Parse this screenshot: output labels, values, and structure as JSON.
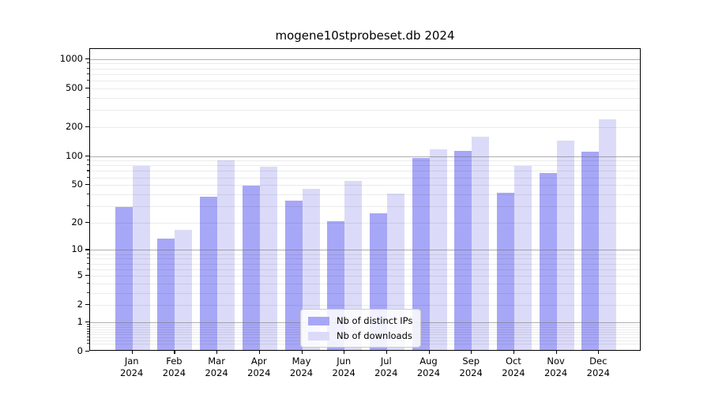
{
  "title": "mogene10stprobeset.db 2024",
  "legend": {
    "items": [
      {
        "label": "Nb of distinct IPs",
        "color": "#a7a7f7"
      },
      {
        "label": "Nb of downloads",
        "color": "#dbdbf9"
      }
    ]
  },
  "chart_data": {
    "type": "bar",
    "title": "mogene10stprobeset.db 2024",
    "categories": [
      "Jan",
      "Feb",
      "Mar",
      "Apr",
      "May",
      "Jun",
      "Jul",
      "Aug",
      "Sep",
      "Oct",
      "Nov",
      "Dec"
    ],
    "year_label": "2024",
    "series": [
      {
        "name": "Nb of distinct IPs",
        "color": "#a7a7f7",
        "values": [
          28,
          13,
          36,
          47,
          33,
          20,
          24,
          92,
          109,
          40,
          64,
          107
        ]
      },
      {
        "name": "Nb of downloads",
        "color": "#dbdbf9",
        "values": [
          76,
          16,
          87,
          75,
          44,
          53,
          39,
          113,
          152,
          76,
          139,
          230
        ]
      }
    ],
    "xlabel": "",
    "ylabel": "",
    "yscale": "log10(1+x)",
    "ylim": [
      0,
      1000
    ],
    "yticks": [
      0,
      1,
      2,
      5,
      10,
      20,
      50,
      100,
      200,
      500,
      1000
    ],
    "major_gridlines": [
      1,
      10,
      100,
      1000
    ],
    "grid": true,
    "legend_position": "lower center"
  }
}
